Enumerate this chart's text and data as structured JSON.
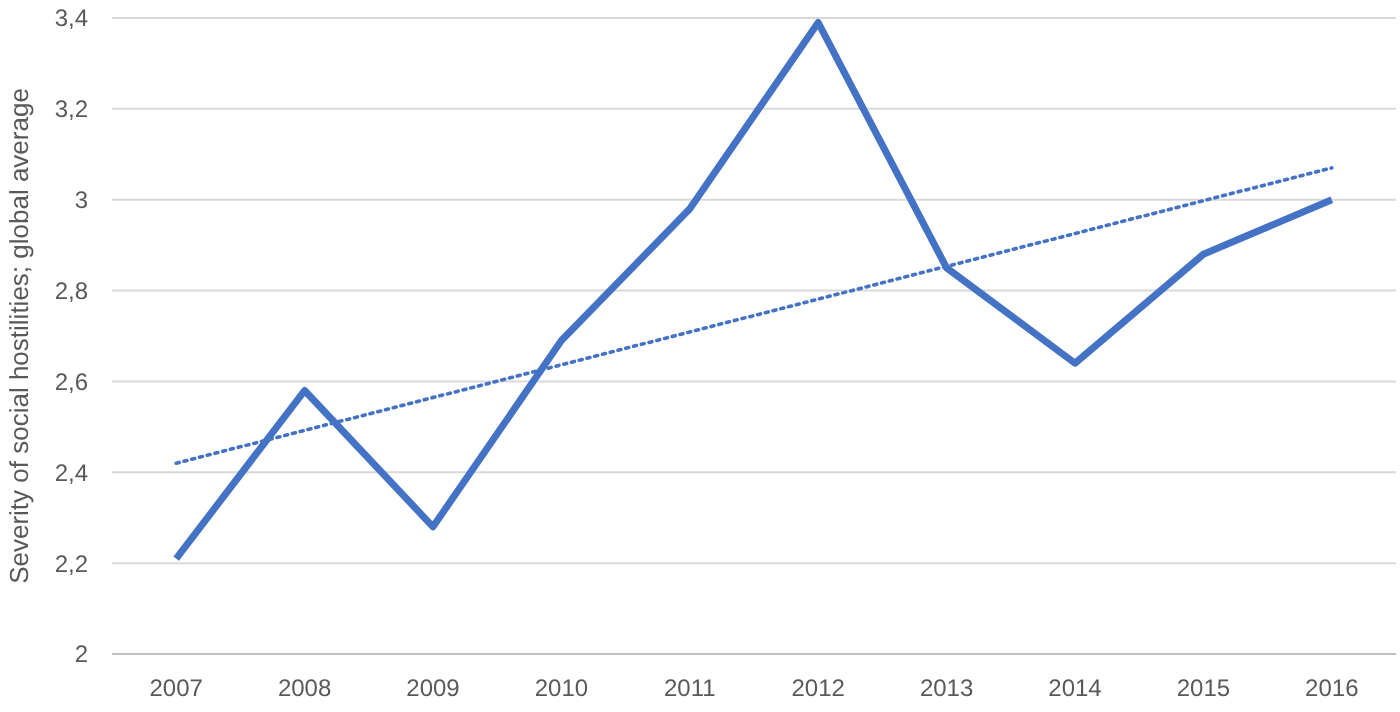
{
  "chart_data": {
    "type": "line",
    "ylabel": "Severity of social hostilities; global average",
    "x": [
      2007,
      2008,
      2009,
      2010,
      2011,
      2012,
      2013,
      2014,
      2015,
      2016
    ],
    "xlim": [
      2006.5,
      2016.5
    ],
    "xticks": [
      2007,
      2008,
      2009,
      2010,
      2011,
      2012,
      2013,
      2014,
      2015,
      2016
    ],
    "ylim": [
      2,
      3.4
    ],
    "yticks": [
      2,
      {
        "value": 2.2,
        "label": "2,2"
      },
      {
        "value": 2.4,
        "label": "2,4"
      },
      {
        "value": 2.6,
        "label": "2,6"
      },
      {
        "value": 2.8,
        "label": "2,8"
      },
      3,
      {
        "value": 3.2,
        "label": "3,2"
      },
      {
        "value": 3.4,
        "label": "3,4"
      }
    ],
    "grid": "y",
    "series": [
      {
        "color": "#4472c4",
        "line_style": "solid",
        "values": [
          2.21,
          2.58,
          2.28,
          2.69,
          2.98,
          3.39,
          2.85,
          2.64,
          2.88,
          3.0
        ]
      },
      {
        "color": "#4472c4",
        "line_style": "dotted",
        "x": [
          2007,
          2016
        ],
        "values": [
          2.42,
          3.07
        ]
      }
    ]
  }
}
